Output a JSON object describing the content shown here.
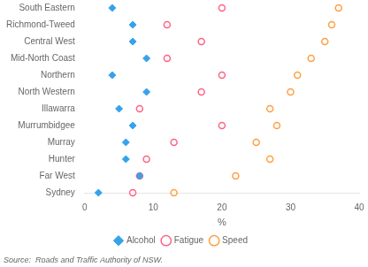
{
  "chart_data": {
    "type": "dot",
    "orientation": "horizontal",
    "categories": [
      "South Eastern",
      "Richmond-Tweed",
      "Central West",
      "Mid-North Coast",
      "Northern",
      "North Western",
      "Illawarra",
      "Murrumbidgee",
      "Murray",
      "Hunter",
      "Far West",
      "Sydney"
    ],
    "series": [
      {
        "name": "Alcohol",
        "color": "#36a2eb",
        "marker": "diamond",
        "values": [
          4,
          7,
          7,
          9,
          4,
          9,
          5,
          7,
          6,
          6,
          8,
          2
        ]
      },
      {
        "name": "Fatigue",
        "color": "#ff6384",
        "marker": "open circle",
        "values": [
          20,
          12,
          17,
          12,
          20,
          17,
          8,
          20,
          13,
          9,
          8,
          7
        ]
      },
      {
        "name": "Speed",
        "color": "#ff9f40",
        "marker": "open circle",
        "values": [
          37,
          36,
          35,
          33,
          31,
          30,
          27,
          28,
          25,
          27,
          22,
          13
        ]
      }
    ],
    "xlabel": "%",
    "xlim": [
      0,
      40
    ],
    "xticks": [
      0,
      10,
      20,
      30,
      40
    ],
    "grid": false,
    "legend": "bottom",
    "annotations": [
      "Source:  Roads and Traffic Authority of NSW."
    ]
  }
}
